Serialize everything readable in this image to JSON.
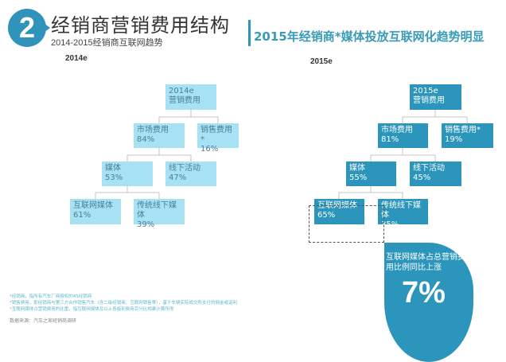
{
  "header": {
    "badge_number": "2",
    "title": "经销商营销费用结构",
    "subtitle": "2014-2015经销商互联网趋势",
    "right_title": "2015年经销商*媒体投放互联网化趋势明显"
  },
  "trees": [
    {
      "year_label": "2014e",
      "root": {
        "line1": "2014e",
        "line2": "营销费用"
      },
      "marketing": {
        "label": "市场费用",
        "value": "84%"
      },
      "sales": {
        "label": "销售费用*",
        "value": "16%"
      },
      "media": {
        "label": "媒体",
        "value": "53%"
      },
      "offline": {
        "label": "线下活动",
        "value": "47%"
      },
      "internet": {
        "label": "互联网媒体",
        "value": "61%"
      },
      "traditional": {
        "label": "传统线下媒体",
        "value": "39%"
      }
    },
    {
      "year_label": "2015e",
      "root": {
        "line1": "2015e",
        "line2": "营销费用"
      },
      "marketing": {
        "label": "市场费用",
        "value": "81%"
      },
      "sales": {
        "label": "销售费用*",
        "value": "19%"
      },
      "media": {
        "label": "媒体",
        "value": "55%"
      },
      "offline": {
        "label": "线下活动",
        "value": "45%"
      },
      "internet": {
        "label": "互联网媒体",
        "value": "65%"
      },
      "traditional": {
        "label": "传统线下媒体",
        "value": "35%"
      }
    }
  ],
  "highlight": {
    "text": "互联网媒体占总营销费用比例同比上涨",
    "value": "7%"
  },
  "notes": [
    "*经销商，指所有汽车厂商授权的4S经销商",
    "*销售费用，即经销商与第三方合作销售汽车（含二级经销商、互联网销售等），基于车辆实际成交所支付的佣金或返利",
    "*互联网媒体占营销费用的比重，指互联网媒体及以上各级别费用百分比相乘计算所得"
  ],
  "source": "数据来源：汽车之家经销商调研",
  "colors": {
    "accent": "#2b95bb",
    "light_box": "#a7e1f4"
  }
}
